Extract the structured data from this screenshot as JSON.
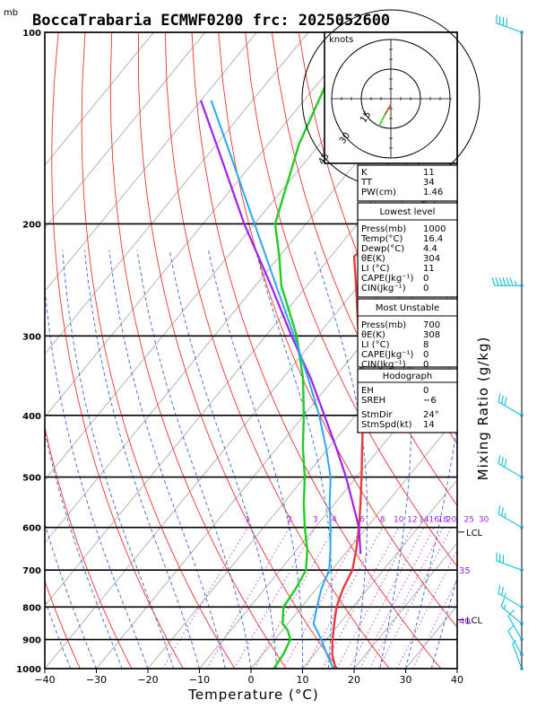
{
  "title": "BoccaTrabaria ECMWF0200 frc: 2025052600",
  "pressure_unit": "mb",
  "xlabel": "Temperature (°C)",
  "mixing_ratio_label": "Mixing Ratio (g/kg)",
  "hodograph": {
    "units": "knots",
    "ring_labels": [
      "15",
      "30",
      "45"
    ]
  },
  "indices": {
    "general": [
      {
        "label": "K",
        "value": "11"
      },
      {
        "label": "TT",
        "value": "34"
      },
      {
        "label": "PW(cm)",
        "value": "1.46"
      }
    ],
    "lowest_title": "Lowest level",
    "lowest": [
      {
        "label": "Press(mb)",
        "value": "1000"
      },
      {
        "label": "Temp(°C)",
        "value": "16.4"
      },
      {
        "label": "Dewp(°C)",
        "value": "4.4"
      },
      {
        "label": "θE(K)",
        "value": "304"
      },
      {
        "label": "LI (°C)",
        "value": "11"
      },
      {
        "label": "CAPE(Jkg⁻¹)",
        "value": "0"
      },
      {
        "label": "CIN(Jkg⁻¹)",
        "value": "0"
      }
    ],
    "unstable_title": "Most Unstable",
    "unstable": [
      {
        "label": "Press(mb)",
        "value": "700"
      },
      {
        "label": "θE(K)",
        "value": "308"
      },
      {
        "label": "LI (°C)",
        "value": "8"
      },
      {
        "label": "CAPE(Jkg⁻¹)",
        "value": "0"
      },
      {
        "label": "CIN(Jkg⁻¹)",
        "value": "0"
      }
    ],
    "hodo_title": "Hodograph",
    "hodo": [
      {
        "label": "EH",
        "value": "0"
      },
      {
        "label": "SREH",
        "value": "−6"
      },
      {
        "label": "StmDir",
        "value": "24°"
      },
      {
        "label": "StmSpd(kt)",
        "value": "14"
      }
    ]
  },
  "chart_data": {
    "type": "line",
    "title": "BoccaTrabaria ECMWF0200 frc: 2025052600",
    "xlabel": "Temperature (°C)",
    "ylabel": "mb",
    "xlim": [
      -40,
      40
    ],
    "ylim": [
      1000,
      100
    ],
    "y_scale": "log",
    "x_ticks": [
      "−40",
      "−30",
      "−20",
      "−10",
      "0",
      "10",
      "20",
      "30",
      "40"
    ],
    "y_ticks": [
      "100",
      "200",
      "300",
      "400",
      "500",
      "600",
      "700",
      "800",
      "900",
      "1000"
    ],
    "mixing_ratio_ticks": [
      "1",
      "2",
      "3",
      "4",
      "6",
      "8",
      "10",
      "12",
      "14",
      "16",
      "18",
      "20",
      "25",
      "30"
    ],
    "level_labels": [
      {
        "text": "LCL",
        "p": 610
      },
      {
        "text": "35",
        "p": 700
      },
      {
        "text": "LCL",
        "p": 838
      },
      {
        "text": "40",
        "p": 840
      }
    ],
    "series": [
      {
        "key": "temperature",
        "color": "#e83c3c",
        "points": [
          [
            1000,
            16.4
          ],
          [
            950,
            13.5
          ],
          [
            900,
            11.2
          ],
          [
            850,
            9.0
          ],
          [
            800,
            6.8
          ],
          [
            750,
            5.2
          ],
          [
            700,
            4.0
          ],
          [
            650,
            1.5
          ],
          [
            600,
            -1.5
          ],
          [
            550,
            -5.0
          ],
          [
            500,
            -9.0
          ],
          [
            450,
            -13.5
          ],
          [
            400,
            -18.5
          ],
          [
            350,
            -24.5
          ],
          [
            300,
            -32.0
          ],
          [
            250,
            -40.5
          ],
          [
            225,
            -45.5
          ],
          [
            200,
            -43.0
          ],
          [
            180,
            -40.0
          ],
          [
            160,
            -37.0
          ],
          [
            140,
            -34.0
          ],
          [
            120,
            -30.5
          ],
          [
            100,
            -26.0
          ]
        ]
      },
      {
        "key": "dewpoint",
        "color": "#22cc22",
        "points": [
          [
            1000,
            4.4
          ],
          [
            950,
            4.0
          ],
          [
            900,
            3.0
          ],
          [
            870,
            1.0
          ],
          [
            850,
            -1.0
          ],
          [
            800,
            -3.5
          ],
          [
            750,
            -4.0
          ],
          [
            700,
            -5.0
          ],
          [
            650,
            -8.0
          ],
          [
            600,
            -12.0
          ],
          [
            550,
            -16.0
          ],
          [
            500,
            -20.0
          ],
          [
            450,
            -25.0
          ],
          [
            400,
            -30.0
          ],
          [
            350,
            -36.0
          ],
          [
            300,
            -44.0
          ],
          [
            250,
            -55.0
          ],
          [
            225,
            -60.0
          ],
          [
            200,
            -66.0
          ],
          [
            150,
            -74.0
          ],
          [
            100,
            -82.0
          ]
        ]
      },
      {
        "key": "parcel",
        "color": "#a020f0",
        "points": [
          [
            660,
            3.0
          ],
          [
            600,
            -1.5
          ],
          [
            550,
            -6.5
          ],
          [
            500,
            -12.0
          ],
          [
            450,
            -18.5
          ],
          [
            400,
            -26.0
          ],
          [
            350,
            -34.5
          ],
          [
            300,
            -45.0
          ],
          [
            250,
            -57.0
          ],
          [
            200,
            -72.0
          ],
          [
            150,
            -90.0
          ],
          [
            128,
            -100.0
          ]
        ]
      },
      {
        "key": "virtual-temperature",
        "color": "#2aa8f0",
        "points": [
          [
            1000,
            16.0
          ],
          [
            950,
            12.5
          ],
          [
            900,
            9.0
          ],
          [
            850,
            5.0
          ],
          [
            800,
            3.0
          ],
          [
            750,
            1.0
          ],
          [
            700,
            -0.5
          ],
          [
            650,
            -3.5
          ],
          [
            600,
            -7.0
          ],
          [
            550,
            -11.0
          ],
          [
            500,
            -15.0
          ],
          [
            450,
            -20.5
          ],
          [
            400,
            -27.0
          ],
          [
            350,
            -35.0
          ],
          [
            300,
            -44.5
          ],
          [
            250,
            -56.0
          ],
          [
            200,
            -70.0
          ],
          [
            150,
            -88.0
          ],
          [
            128,
            -98.0
          ]
        ]
      }
    ],
    "hodograph_trace": [
      [
        0,
        -3
      ],
      [
        -3,
        -8
      ],
      [
        -6,
        -14
      ],
      [
        -4,
        -10
      ]
    ],
    "wind_barbs": [
      {
        "p": 100,
        "dir": 290,
        "spd": 40
      },
      {
        "p": 250,
        "dir": 270,
        "spd": 65
      },
      {
        "p": 400,
        "dir": 300,
        "spd": 30
      },
      {
        "p": 500,
        "dir": 300,
        "spd": 30
      },
      {
        "p": 600,
        "dir": 300,
        "spd": 25
      },
      {
        "p": 700,
        "dir": 290,
        "spd": 30
      },
      {
        "p": 800,
        "dir": 300,
        "spd": 25
      },
      {
        "p": 850,
        "dir": 310,
        "spd": 15
      },
      {
        "p": 900,
        "dir": 330,
        "spd": 10
      },
      {
        "p": 950,
        "dir": 330,
        "spd": 10
      },
      {
        "p": 1000,
        "dir": 340,
        "spd": 5
      }
    ]
  }
}
